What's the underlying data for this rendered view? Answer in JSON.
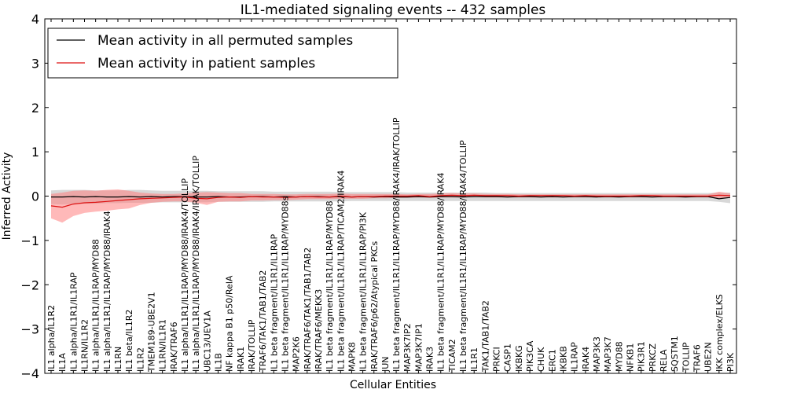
{
  "chart_data": {
    "type": "line",
    "title": "IL1-mediated signaling events -- 432 samples",
    "xlabel": "Cellular Entities",
    "ylabel": "Inferred Activity",
    "ylim": [
      -4,
      4
    ],
    "yticks": [
      -4,
      -3,
      -2,
      -1,
      0,
      1,
      2,
      3,
      4
    ],
    "ytick_labels": [
      "−4",
      "−3",
      "−2",
      "−1",
      "0",
      "1",
      "2",
      "3",
      "4"
    ],
    "grid": false,
    "legend_position": "top-left",
    "categories": [
      "IL1 alpha/IL1R2",
      "IL1A",
      "IL1 alpha/IL1R1/IL1RAP",
      "IL1RN/IL1R2",
      "IL1 alpha/IL1R1/IL1RAP/MYD88",
      "IL1 alpha/IL1R1/IL1RAP/MYD88/IRAK4",
      "IL1RN",
      "IL1 beta/IL1R2",
      "IL1R2",
      "TMEM189-UBE2V1",
      "IL1RN/IL1R1",
      "IRAK/TRAF6",
      "IL1 alpha/IL1R1/IL1RAP/MYD88/IRAK4/TOLLIP",
      "IL1 alpha/IL1R1/IL1RAP/MYD88/IRAK4/IRAK/TOLLIP",
      "UBC13/UEV1A",
      "IL1B",
      "NF kappa B1 p50/RelA",
      "IRAK1",
      "IRAK/TOLLIP",
      "TRAF6/TAK1/TAB1/TAB2",
      "IL1 beta fragment/IL1R1/IL1RAP",
      "IL1 beta fragment/IL1R1/IL1RAP/MYD88s",
      "MAP2K6",
      "IRAK/TRAF6/TAK1/TAB1/TAB2",
      "IRAK/TRAF6/MEKK3",
      "IL1 beta fragment/IL1R1/IL1RAP/MYD88",
      "IL1 beta fragment/IL1R1/IL1RAP/TICAM2/IRAK4",
      "MAPK8",
      "IL1 beta fragment/IL1R1/IL1RAP/PI3K",
      "IRAK/TRAF6/p62/Atypical PKCs",
      "JUN",
      "IL1 beta fragment/IL1R1/IL1RAP/MYD88/IRAK4/IRAK/TOLLIP",
      "MAP3K7IP2",
      "MAP3K7IP1",
      "IRAK3",
      "IL1 beta fragment/IL1R1/IL1RAP/MYD88/IRAK4",
      "TICAM2",
      "IL1 beta fragment/IL1R1/IL1RAP/MYD88/IRAK4/TOLLIP",
      "IL1R1",
      "TAK1/TAB1/TAB2",
      "PRKCI",
      "CASP1",
      "IKBKG",
      "PIK3CA",
      "CHUK",
      "ERC1",
      "IKBKB",
      "IL1RAP",
      "IRAK4",
      "MAP3K3",
      "MAP3K7",
      "MYD88",
      "NFKB1",
      "PIK3R1",
      "PRKCZ",
      "RELA",
      "SQSTM1",
      "TOLLIP",
      "TRAF6",
      "UBE2N",
      "IKK complex/ELKS",
      "PI3K"
    ],
    "series": [
      {
        "name": "Mean activity in all permuted samples",
        "color": "#000000",
        "band_color": "#c8c8c8",
        "values": [
          -0.02,
          -0.02,
          -0.01,
          -0.02,
          -0.01,
          -0.02,
          -0.02,
          -0.01,
          -0.02,
          -0.01,
          -0.02,
          -0.01,
          -0.01,
          -0.02,
          -0.02,
          -0.01,
          -0.02,
          -0.02,
          -0.01,
          -0.01,
          -0.02,
          -0.01,
          -0.02,
          -0.01,
          -0.01,
          -0.02,
          -0.01,
          -0.02,
          -0.01,
          -0.02,
          -0.01,
          -0.02,
          -0.02,
          -0.01,
          -0.02,
          -0.01,
          -0.01,
          -0.02,
          -0.01,
          -0.01,
          -0.01,
          -0.02,
          -0.01,
          -0.01,
          -0.02,
          -0.01,
          -0.02,
          -0.01,
          -0.01,
          -0.02,
          -0.01,
          -0.02,
          -0.01,
          -0.01,
          -0.02,
          -0.01,
          -0.01,
          -0.02,
          -0.01,
          -0.01,
          -0.06,
          -0.03
        ],
        "band_upper": [
          0.13,
          0.14,
          0.14,
          0.14,
          0.13,
          0.13,
          0.13,
          0.14,
          0.14,
          0.13,
          0.12,
          0.12,
          0.12,
          0.12,
          0.12,
          0.11,
          0.11,
          0.11,
          0.11,
          0.11,
          0.1,
          0.1,
          0.1,
          0.1,
          0.1,
          0.1,
          0.09,
          0.09,
          0.09,
          0.09,
          0.09,
          0.09,
          0.08,
          0.08,
          0.08,
          0.08,
          0.08,
          0.08,
          0.08,
          0.08,
          0.07,
          0.07,
          0.07,
          0.07,
          0.07,
          0.07,
          0.07,
          0.07,
          0.07,
          0.07,
          0.07,
          0.07,
          0.07,
          0.07,
          0.07,
          0.07,
          0.07,
          0.07,
          0.07,
          0.07,
          0.08,
          0.08
        ],
        "band_lower": [
          -0.18,
          -0.19,
          -0.18,
          -0.17,
          -0.17,
          -0.16,
          -0.16,
          -0.15,
          -0.15,
          -0.15,
          -0.14,
          -0.14,
          -0.14,
          -0.14,
          -0.14,
          -0.13,
          -0.13,
          -0.13,
          -0.13,
          -0.13,
          -0.12,
          -0.12,
          -0.12,
          -0.12,
          -0.12,
          -0.12,
          -0.12,
          -0.11,
          -0.11,
          -0.11,
          -0.11,
          -0.11,
          -0.11,
          -0.11,
          -0.11,
          -0.11,
          -0.11,
          -0.11,
          -0.11,
          -0.11,
          -0.11,
          -0.11,
          -0.11,
          -0.11,
          -0.11,
          -0.11,
          -0.11,
          -0.11,
          -0.11,
          -0.11,
          -0.11,
          -0.11,
          -0.11,
          -0.11,
          -0.11,
          -0.11,
          -0.11,
          -0.11,
          -0.11,
          -0.11,
          -0.13,
          -0.16
        ]
      },
      {
        "name": "Mean activity in patient samples",
        "color": "#dd1111",
        "band_color": "#ff8080",
        "values": [
          -0.22,
          -0.25,
          -0.18,
          -0.15,
          -0.14,
          -0.12,
          -0.1,
          -0.08,
          -0.06,
          -0.05,
          -0.04,
          -0.03,
          -0.02,
          -0.05,
          -0.06,
          -0.03,
          -0.02,
          -0.03,
          -0.01,
          -0.02,
          -0.02,
          -0.03,
          -0.02,
          -0.01,
          -0.02,
          -0.02,
          0.0,
          -0.02,
          -0.01,
          -0.01,
          0.0,
          0.0,
          0.0,
          0.01,
          -0.01,
          0.01,
          0.02,
          0.01,
          0.02,
          0.01,
          0.01,
          0.01,
          0.0,
          0.01,
          0.01,
          0.01,
          0.01,
          0.0,
          0.01,
          0.0,
          0.0,
          0.0,
          0.0,
          0.01,
          0.01,
          0.0,
          0.0,
          0.0,
          0.0,
          0.0,
          0.02,
          0.01
        ],
        "band_upper": [
          0.05,
          0.08,
          0.12,
          0.13,
          0.12,
          0.14,
          0.15,
          0.12,
          0.08,
          0.06,
          0.05,
          0.05,
          0.06,
          0.08,
          0.09,
          0.08,
          0.07,
          0.07,
          0.05,
          0.05,
          0.05,
          0.04,
          0.04,
          0.05,
          0.05,
          0.05,
          0.06,
          0.05,
          0.05,
          0.05,
          0.05,
          0.05,
          0.04,
          0.05,
          0.05,
          0.06,
          0.07,
          0.06,
          0.06,
          0.05,
          0.05,
          0.05,
          0.04,
          0.04,
          0.04,
          0.04,
          0.04,
          0.04,
          0.04,
          0.04,
          0.04,
          0.04,
          0.04,
          0.04,
          0.04,
          0.04,
          0.04,
          0.04,
          0.04,
          0.04,
          0.1,
          0.06
        ],
        "band_lower": [
          -0.5,
          -0.6,
          -0.45,
          -0.38,
          -0.35,
          -0.33,
          -0.3,
          -0.28,
          -0.2,
          -0.15,
          -0.13,
          -0.12,
          -0.12,
          -0.15,
          -0.2,
          -0.13,
          -0.12,
          -0.12,
          -0.1,
          -0.1,
          -0.09,
          -0.09,
          -0.08,
          -0.07,
          -0.07,
          -0.07,
          -0.06,
          -0.06,
          -0.06,
          -0.05,
          -0.05,
          -0.04,
          -0.04,
          -0.03,
          -0.04,
          -0.03,
          -0.03,
          -0.03,
          -0.02,
          -0.03,
          -0.03,
          -0.03,
          -0.03,
          -0.03,
          -0.03,
          -0.03,
          -0.03,
          -0.03,
          -0.03,
          -0.03,
          -0.03,
          -0.03,
          -0.03,
          -0.03,
          -0.03,
          -0.03,
          -0.03,
          -0.03,
          -0.03,
          -0.03,
          -0.05,
          -0.04
        ]
      }
    ]
  }
}
